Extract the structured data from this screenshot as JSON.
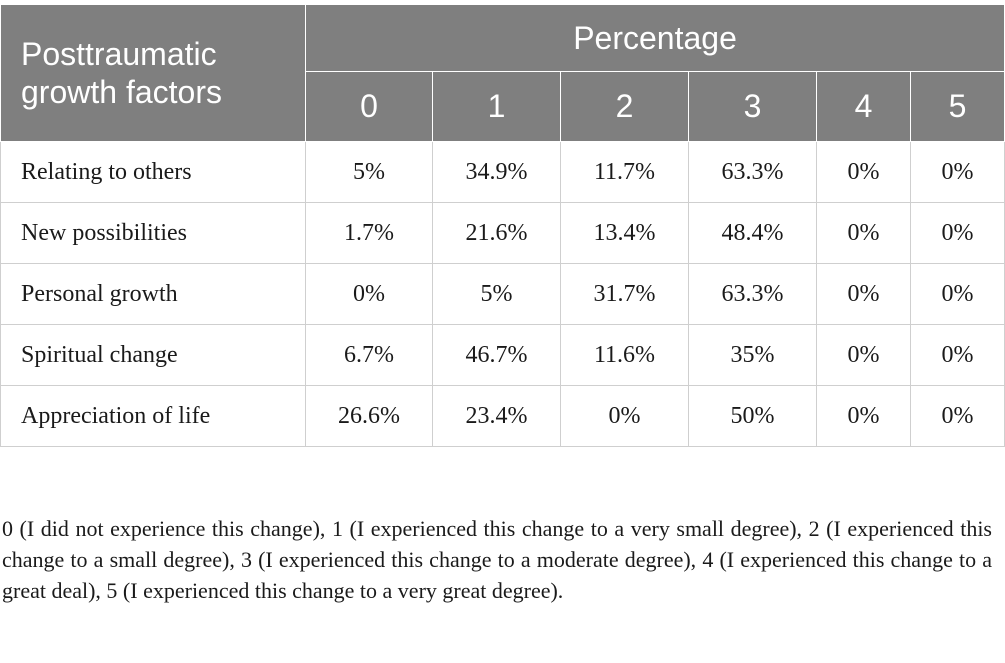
{
  "table": {
    "factor_header": "Posttraumatic growth factors",
    "group_header": "Percentage",
    "columns": [
      "0",
      "1",
      "2",
      "3",
      "4",
      "5"
    ],
    "rows": [
      {
        "label": "Relating to others",
        "values": [
          "5%",
          "34.9%",
          "11.7%",
          "63.3%",
          "0%",
          "0%"
        ]
      },
      {
        "label": "New possibilities",
        "values": [
          "1.7%",
          "21.6%",
          "13.4%",
          "48.4%",
          "0%",
          "0%"
        ]
      },
      {
        "label": "Personal growth",
        "values": [
          "0%",
          "5%",
          "31.7%",
          "63.3%",
          "0%",
          "0%"
        ]
      },
      {
        "label": "Spiritual change",
        "values": [
          "6.7%",
          "46.7%",
          "11.6%",
          "35%",
          "0%",
          "0%"
        ]
      },
      {
        "label": "Appreciation of life",
        "values": [
          "26.6%",
          "23.4%",
          "0%",
          "50%",
          "0%",
          "0%"
        ]
      }
    ]
  },
  "footnote": "0 (I did not experience this change), 1 (I experienced this change to a very small degree), 2 (I experienced this change to a small degree), 3 (I experienced this change to a moderate degree), 4 (I experienced this change to a great deal), 5 (I experienced this change to a very great degree).",
  "colors": {
    "header_bg": "#7f7f7f",
    "header_text": "#ffffff",
    "grid_line": "#cfcfcf"
  }
}
